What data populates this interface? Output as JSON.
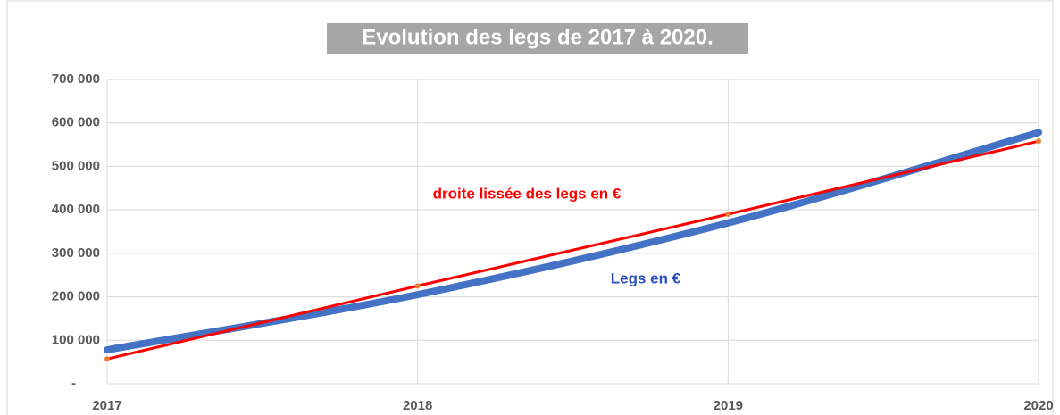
{
  "chart_data": {
    "type": "line",
    "title": "Evolution des legs de 2017 à 2020.",
    "x": [
      2017,
      2018,
      2019,
      2020
    ],
    "xlim": [
      2017,
      2020
    ],
    "xticks": [
      2017,
      2018,
      2019,
      2020
    ],
    "ylim": [
      0,
      700000
    ],
    "yticks": [
      {
        "value": 0,
        "label": "-"
      },
      {
        "value": 100000,
        "label": "100 000"
      },
      {
        "value": 200000,
        "label": "200 000"
      },
      {
        "value": 300000,
        "label": "300 000"
      },
      {
        "value": 400000,
        "label": "400 000"
      },
      {
        "value": 500000,
        "label": "500 000"
      },
      {
        "value": 600000,
        "label": "600 000"
      },
      {
        "value": 700000,
        "label": "700 000"
      }
    ],
    "grid": true,
    "series": [
      {
        "name": "Legs en €",
        "color": "#4472c4",
        "smooth": true,
        "values": [
          78000,
          205000,
          370000,
          578000
        ]
      },
      {
        "name": "droite lissée des legs en €",
        "color": "#ff0000",
        "marker_color": "#ed7d31",
        "values": [
          57000,
          225000,
          390000,
          558000
        ]
      }
    ]
  }
}
